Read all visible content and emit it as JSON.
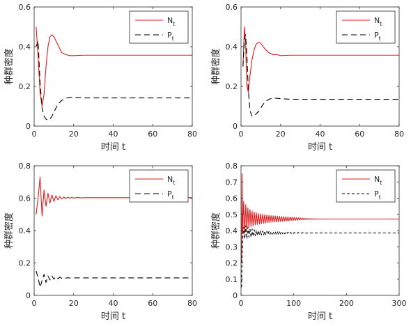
{
  "chart_data": [
    {
      "type": "line",
      "xlabel": "时间 t",
      "ylabel": "种群密度",
      "xlim": [
        0,
        80
      ],
      "ylim": [
        0,
        0.6
      ],
      "xticks": [
        0,
        20,
        40,
        60,
        80
      ],
      "yticks": [
        0,
        0.2,
        0.4,
        0.6
      ],
      "legend_position": "top-right",
      "grid": false,
      "series": [
        {
          "name": "N",
          "sub": "t",
          "color": "#e41a1c",
          "dash": "solid",
          "x": [
            1,
            2,
            3,
            4,
            5,
            6,
            7,
            8,
            9,
            10,
            11,
            12,
            13,
            14,
            16,
            18,
            20,
            25,
            30,
            40,
            50,
            60,
            70,
            80
          ],
          "y": [
            0.5,
            0.35,
            0.17,
            0.1,
            0.16,
            0.3,
            0.4,
            0.45,
            0.46,
            0.45,
            0.43,
            0.41,
            0.39,
            0.37,
            0.36,
            0.355,
            0.355,
            0.357,
            0.357,
            0.357,
            0.357,
            0.357,
            0.357,
            0.357
          ]
        },
        {
          "name": "P",
          "sub": "t",
          "color": "#000000",
          "dash": "8,5",
          "x": [
            1,
            2,
            3,
            4,
            5,
            6,
            7,
            8,
            9,
            10,
            11,
            12,
            13,
            14,
            16,
            18,
            20,
            25,
            30,
            40,
            50,
            60,
            70,
            80
          ],
          "y": [
            0.4,
            0.43,
            0.22,
            0.09,
            0.05,
            0.035,
            0.03,
            0.035,
            0.05,
            0.07,
            0.09,
            0.11,
            0.12,
            0.13,
            0.14,
            0.145,
            0.145,
            0.142,
            0.142,
            0.142,
            0.142,
            0.142,
            0.142,
            0.142
          ]
        }
      ]
    },
    {
      "type": "line",
      "xlabel": "时间 t",
      "ylabel": "种群密度",
      "xlim": [
        0,
        80
      ],
      "ylim": [
        0,
        0.6
      ],
      "xticks": [
        0,
        20,
        40,
        60,
        80
      ],
      "yticks": [
        0,
        0.2,
        0.4,
        0.6
      ],
      "legend_position": "top-right",
      "grid": false,
      "series": [
        {
          "name": "N",
          "sub": "t",
          "color": "#e41a1c",
          "dash": "solid",
          "x": [
            1,
            1.7,
            2.3,
            3,
            3.7,
            4.5,
            5.5,
            6.5,
            7.5,
            8.5,
            9.5,
            10.5,
            12,
            14,
            16,
            18,
            20,
            25,
            30,
            40,
            50,
            60,
            70,
            80
          ],
          "y": [
            0.3,
            0.5,
            0.42,
            0.2,
            0.17,
            0.25,
            0.33,
            0.38,
            0.41,
            0.42,
            0.42,
            0.41,
            0.39,
            0.37,
            0.36,
            0.36,
            0.355,
            0.357,
            0.357,
            0.357,
            0.357,
            0.357,
            0.357,
            0.357
          ]
        },
        {
          "name": "P",
          "sub": "t",
          "color": "#000000",
          "dash": "8,5",
          "x": [
            1,
            1.7,
            2.3,
            3,
            3.7,
            4.5,
            5.5,
            6.5,
            7.5,
            8.5,
            9.5,
            10.5,
            12,
            14,
            16,
            18,
            20,
            25,
            30,
            40,
            50,
            60,
            70,
            80
          ],
          "y": [
            0.3,
            0.44,
            0.46,
            0.35,
            0.18,
            0.08,
            0.05,
            0.05,
            0.06,
            0.07,
            0.08,
            0.1,
            0.12,
            0.135,
            0.14,
            0.14,
            0.138,
            0.135,
            0.135,
            0.135,
            0.135,
            0.135,
            0.135,
            0.135
          ]
        }
      ]
    },
    {
      "type": "line",
      "xlabel": "时间 t",
      "ylabel": "种群密度",
      "xlim": [
        0,
        80
      ],
      "ylim": [
        0,
        0.8
      ],
      "xticks": [
        0,
        20,
        40,
        60,
        80
      ],
      "yticks": [
        0,
        0.2,
        0.4,
        0.6,
        0.8
      ],
      "legend_position": "top-right",
      "grid": false,
      "series": [
        {
          "name": "N",
          "sub": "t",
          "color": "#e41a1c",
          "dash": "solid",
          "x": [
            1,
            2,
            3,
            4,
            5,
            6,
            7,
            8,
            9,
            10,
            11,
            12,
            13,
            14,
            15,
            16,
            17,
            18,
            19,
            20,
            22,
            24,
            26,
            28,
            30,
            40,
            50,
            60,
            70,
            80
          ],
          "y": [
            0.5,
            0.6,
            0.73,
            0.49,
            0.65,
            0.55,
            0.63,
            0.57,
            0.62,
            0.58,
            0.615,
            0.59,
            0.61,
            0.595,
            0.608,
            0.598,
            0.606,
            0.6,
            0.605,
            0.601,
            0.604,
            0.602,
            0.603,
            0.603,
            0.603,
            0.603,
            0.603,
            0.603,
            0.603,
            0.603
          ]
        },
        {
          "name": "P",
          "sub": "t",
          "color": "#000000",
          "dash": "8,5",
          "x": [
            1,
            2,
            3,
            4,
            5,
            6,
            7,
            8,
            9,
            10,
            11,
            12,
            13,
            14,
            15,
            16,
            17,
            18,
            19,
            20,
            22,
            24,
            26,
            28,
            30,
            40,
            50,
            60,
            70,
            80
          ],
          "y": [
            0.15,
            0.11,
            0.05,
            0.09,
            0.13,
            0.08,
            0.12,
            0.095,
            0.12,
            0.1,
            0.115,
            0.103,
            0.112,
            0.105,
            0.11,
            0.106,
            0.109,
            0.107,
            0.109,
            0.108,
            0.108,
            0.108,
            0.108,
            0.108,
            0.108,
            0.108,
            0.108,
            0.108,
            0.108,
            0.108
          ]
        }
      ]
    },
    {
      "type": "line",
      "xlabel": "时间 t",
      "ylabel": "种群密度",
      "xlim": [
        0,
        300
      ],
      "ylim": [
        0,
        0.8
      ],
      "xticks": [
        0,
        100,
        200,
        300
      ],
      "yticks": [
        0,
        0.1,
        0.2,
        0.3,
        0.4,
        0.5,
        0.6,
        0.7,
        0.8
      ],
      "legend_position": "top-right",
      "grid": false,
      "series": [
        {
          "name": "N",
          "sub": "t",
          "color": "#e41a1c",
          "dash": "solid",
          "x": [
            1,
            2,
            3,
            5,
            7,
            9,
            11,
            13,
            15,
            17,
            19,
            21,
            23,
            25,
            27,
            29,
            31,
            33,
            35,
            37,
            39,
            41,
            43,
            45,
            47,
            49,
            51,
            53,
            55,
            57,
            59,
            61,
            63,
            65,
            67,
            69,
            71,
            73,
            75,
            77,
            79,
            81,
            83,
            85,
            87,
            89,
            91,
            93,
            95,
            97,
            99,
            101,
            103,
            105,
            107,
            109,
            111,
            113,
            115,
            117,
            119,
            121,
            123,
            125,
            127,
            129,
            131,
            133,
            135,
            137,
            139,
            141,
            143,
            145,
            147,
            149,
            151,
            153,
            155,
            157,
            159,
            160,
            180,
            200,
            250,
            300
          ],
          "y": [
            0.2,
            0.75,
            0.38,
            0.58,
            0.39,
            0.56,
            0.41,
            0.54,
            0.42,
            0.53,
            0.425,
            0.52,
            0.43,
            0.515,
            0.435,
            0.51,
            0.438,
            0.505,
            0.44,
            0.503,
            0.443,
            0.5,
            0.445,
            0.498,
            0.447,
            0.496,
            0.449,
            0.494,
            0.45,
            0.492,
            0.452,
            0.491,
            0.453,
            0.49,
            0.454,
            0.489,
            0.455,
            0.488,
            0.456,
            0.487,
            0.457,
            0.486,
            0.458,
            0.485,
            0.459,
            0.484,
            0.46,
            0.483,
            0.461,
            0.482,
            0.462,
            0.481,
            0.463,
            0.48,
            0.464,
            0.479,
            0.465,
            0.478,
            0.466,
            0.477,
            0.467,
            0.476,
            0.468,
            0.475,
            0.469,
            0.474,
            0.469,
            0.474,
            0.47,
            0.473,
            0.47,
            0.473,
            0.471,
            0.472,
            0.471,
            0.472,
            0.471,
            0.472,
            0.471,
            0.472,
            0.471,
            0.4715,
            0.4715,
            0.4715,
            0.4715,
            0.4715
          ]
        },
        {
          "name": "P",
          "sub": "t",
          "color": "#000000",
          "dash": "4,3",
          "x": [
            1,
            2,
            3,
            5,
            7,
            9,
            11,
            13,
            15,
            17,
            19,
            21,
            23,
            25,
            27,
            29,
            31,
            33,
            35,
            37,
            39,
            41,
            43,
            45,
            47,
            49,
            51,
            53,
            55,
            57,
            59,
            61,
            63,
            65,
            67,
            69,
            71,
            73,
            75,
            77,
            79,
            81,
            83,
            85,
            87,
            89,
            91,
            93,
            95,
            97,
            99,
            101,
            103,
            105,
            107,
            109,
            111,
            113,
            115,
            117,
            119,
            121,
            123,
            125,
            127,
            129,
            131,
            133,
            135,
            137,
            139,
            141,
            143,
            145,
            147,
            149,
            151,
            153,
            155,
            157,
            159,
            160,
            180,
            200,
            250,
            300
          ],
          "y": [
            0.05,
            0.25,
            0.34,
            0.42,
            0.35,
            0.43,
            0.35,
            0.42,
            0.36,
            0.41,
            0.36,
            0.41,
            0.365,
            0.405,
            0.368,
            0.402,
            0.37,
            0.4,
            0.372,
            0.398,
            0.373,
            0.397,
            0.374,
            0.396,
            0.375,
            0.395,
            0.376,
            0.394,
            0.377,
            0.394,
            0.377,
            0.393,
            0.378,
            0.393,
            0.378,
            0.392,
            0.379,
            0.392,
            0.379,
            0.391,
            0.38,
            0.391,
            0.38,
            0.39,
            0.381,
            0.39,
            0.381,
            0.389,
            0.382,
            0.389,
            0.382,
            0.388,
            0.383,
            0.388,
            0.383,
            0.388,
            0.383,
            0.387,
            0.384,
            0.387,
            0.384,
            0.387,
            0.384,
            0.386,
            0.385,
            0.386,
            0.385,
            0.386,
            0.385,
            0.386,
            0.385,
            0.386,
            0.385,
            0.386,
            0.385,
            0.386,
            0.385,
            0.386,
            0.385,
            0.386,
            0.385,
            0.3855,
            0.3855,
            0.3855,
            0.3855,
            0.3855
          ]
        }
      ]
    }
  ]
}
